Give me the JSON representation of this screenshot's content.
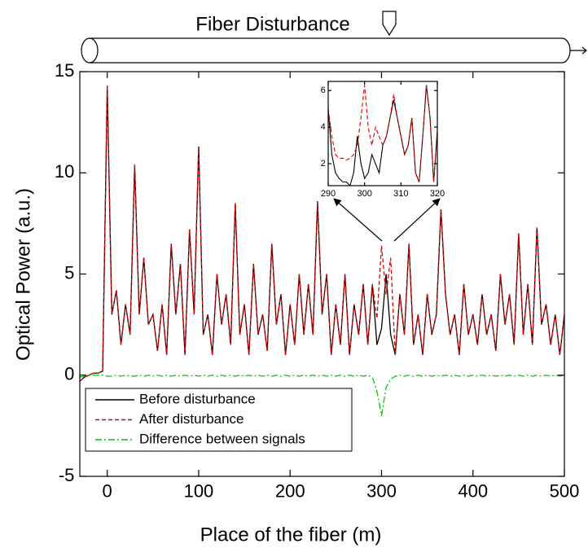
{
  "chart_data": [
    {
      "type": "line",
      "annotation": "Fiber Disturbance",
      "x_label": "Place of the fiber (m)",
      "y_label": "Optical Power (a.u.)",
      "xlim": [
        -30,
        500
      ],
      "ylim": [
        -5,
        15
      ],
      "xticks": [
        0,
        100,
        200,
        300,
        400,
        500
      ],
      "yticks": [
        -5,
        0,
        5,
        10,
        15
      ],
      "legend": "lower left",
      "x": [
        -30,
        -25,
        -20,
        -15,
        -10,
        -5,
        0,
        5,
        10,
        15,
        20,
        25,
        30,
        35,
        40,
        45,
        50,
        55,
        60,
        65,
        70,
        75,
        80,
        85,
        90,
        95,
        100,
        105,
        110,
        115,
        120,
        125,
        130,
        135,
        140,
        145,
        150,
        155,
        160,
        165,
        170,
        175,
        180,
        185,
        190,
        195,
        200,
        205,
        210,
        215,
        220,
        225,
        230,
        235,
        240,
        245,
        250,
        255,
        260,
        265,
        270,
        275,
        280,
        285,
        290,
        295,
        300,
        305,
        310,
        315,
        320,
        325,
        330,
        335,
        340,
        345,
        350,
        355,
        360,
        365,
        370,
        375,
        380,
        385,
        390,
        395,
        400,
        405,
        410,
        415,
        420,
        425,
        430,
        435,
        440,
        445,
        450,
        455,
        460,
        465,
        470,
        475,
        480,
        485,
        490,
        495,
        500
      ],
      "series": [
        {
          "name": "Before disturbance",
          "color": "#000000",
          "line_style": "solid",
          "values": [
            -0.3,
            -0.1,
            0,
            0.1,
            0.1,
            0.2,
            14.3,
            3.0,
            4.2,
            1.5,
            3.5,
            2.0,
            10.4,
            3.0,
            5.8,
            2.5,
            3.0,
            1.2,
            3.5,
            1.0,
            6.5,
            3.0,
            5.5,
            1.0,
            7.2,
            3.0,
            11.3,
            2.0,
            3.0,
            1.0,
            5.0,
            2.5,
            4.0,
            1.5,
            8.5,
            2.0,
            3.5,
            1.0,
            5.5,
            2.0,
            3.0,
            1.2,
            6.5,
            2.5,
            4.0,
            1.0,
            3.5,
            1.5,
            5.0,
            2.0,
            4.5,
            2.0,
            8.6,
            3.0,
            5.0,
            1.0,
            3.5,
            1.5,
            5.0,
            1.0,
            3.5,
            2.0,
            4.5,
            1.5,
            4.5,
            1.5,
            2.3,
            5.0,
            2.0,
            1.0,
            4.0,
            2.0,
            6.5,
            1.5,
            3.0,
            1.0,
            4.0,
            2.0,
            3.0,
            8.2,
            4.0,
            2.0,
            3.0,
            1.0,
            4.5,
            2.0,
            3.0,
            1.5,
            4.0,
            2.0,
            3.0,
            1.2,
            5.0,
            2.5,
            4.0,
            1.5,
            7.0,
            2.0,
            4.5,
            1.5,
            7.3,
            2.5,
            3.5,
            1.5,
            3.0,
            1.0,
            3.0
          ]
        },
        {
          "name": "After disturbance",
          "color": "#e00000",
          "line_style": "dashed",
          "values": [
            -0.3,
            -0.1,
            0,
            0.1,
            0.1,
            0.2,
            14.3,
            3.0,
            4.2,
            1.5,
            3.5,
            2.0,
            10.4,
            3.0,
            5.8,
            2.5,
            3.0,
            1.2,
            3.5,
            1.0,
            6.5,
            3.0,
            5.5,
            1.0,
            7.2,
            3.0,
            11.3,
            2.0,
            3.0,
            1.0,
            5.0,
            2.5,
            4.0,
            1.5,
            8.5,
            2.0,
            3.5,
            1.0,
            5.5,
            2.0,
            3.0,
            1.2,
            6.5,
            2.5,
            4.0,
            1.0,
            3.5,
            1.5,
            5.0,
            2.0,
            4.5,
            2.0,
            8.6,
            3.0,
            5.0,
            1.0,
            3.5,
            1.5,
            5.0,
            1.0,
            3.5,
            2.0,
            4.5,
            1.5,
            4.5,
            2.8,
            6.4,
            4.0,
            5.8,
            1.0,
            4.0,
            2.0,
            6.5,
            1.5,
            3.0,
            1.0,
            4.0,
            2.0,
            3.0,
            8.2,
            4.0,
            2.0,
            3.0,
            1.0,
            4.5,
            2.0,
            3.0,
            1.5,
            4.0,
            2.0,
            3.0,
            1.2,
            5.0,
            2.5,
            4.0,
            1.5,
            7.0,
            2.0,
            4.5,
            1.5,
            7.3,
            2.5,
            3.5,
            1.5,
            3.0,
            1.0,
            3.0
          ]
        },
        {
          "name": "Difference between signals",
          "color": "#00cc00",
          "line_style": "dashdot",
          "values": [
            -0.1,
            -0.05,
            0,
            0,
            0,
            0,
            -0.05,
            -0.05,
            0,
            -0.05,
            0,
            -0.05,
            -0.05,
            0,
            -0.05,
            0,
            -0.05,
            0,
            -0.05,
            0,
            -0.05,
            0,
            -0.05,
            0,
            -0.05,
            0,
            -0.05,
            0,
            -0.05,
            0,
            -0.05,
            0,
            -0.05,
            0,
            -0.05,
            0,
            -0.05,
            0,
            -0.05,
            0,
            -0.05,
            0,
            -0.05,
            0,
            -0.05,
            0,
            -0.05,
            0,
            -0.05,
            0,
            -0.05,
            0,
            -0.05,
            0,
            -0.05,
            0,
            -0.05,
            0,
            -0.05,
            0,
            -0.05,
            0,
            -0.05,
            0,
            -0.1,
            -0.8,
            -2.0,
            -0.6,
            -0.2,
            -0.05,
            0,
            -0.05,
            0,
            -0.05,
            0,
            -0.05,
            0,
            -0.05,
            0,
            -0.05,
            0,
            -0.05,
            0,
            -0.05,
            0,
            -0.05,
            0,
            -0.05,
            0,
            -0.05,
            0,
            -0.05,
            0,
            -0.05,
            0,
            -0.05,
            0,
            -0.05,
            0,
            -0.05,
            0,
            -0.05,
            0,
            -0.05,
            0,
            -0.05,
            0
          ]
        }
      ]
    },
    {
      "type": "line",
      "xlim": [
        290,
        320
      ],
      "ylim": [
        0.8,
        6.5
      ],
      "xticks": [
        290,
        300,
        310,
        320
      ],
      "yticks": [
        2,
        4,
        6
      ],
      "x": [
        290,
        291,
        292,
        293,
        294,
        295,
        296,
        297,
        298,
        299,
        300,
        301,
        302,
        303,
        304,
        305,
        306,
        307,
        308,
        309,
        310,
        311,
        312,
        313,
        314,
        315,
        316,
        317,
        318,
        319,
        320
      ],
      "series": [
        {
          "color": "#000000",
          "line_style": "solid",
          "values": [
            5.0,
            2.5,
            1.5,
            1.2,
            1.0,
            1.0,
            0.8,
            1.5,
            3.5,
            2.0,
            1.2,
            1.5,
            2.5,
            2.0,
            1.5,
            3.0,
            3.5,
            4.5,
            5.5,
            4.5,
            3.5,
            2.5,
            3.0,
            4.5,
            1.5,
            1.0,
            3.5,
            6.3,
            4.5,
            1.0,
            3.8
          ]
        },
        {
          "color": "#e00000",
          "line_style": "dashed",
          "values": [
            5.0,
            3.5,
            2.5,
            2.3,
            2.3,
            2.2,
            2.3,
            2.5,
            3.0,
            4.5,
            6.3,
            4.0,
            3.0,
            4.0,
            3.5,
            3.0,
            3.5,
            4.5,
            5.8,
            4.5,
            3.5,
            2.5,
            3.0,
            4.5,
            1.5,
            1.0,
            3.5,
            6.3,
            4.5,
            1.0,
            3.8
          ]
        }
      ]
    }
  ]
}
